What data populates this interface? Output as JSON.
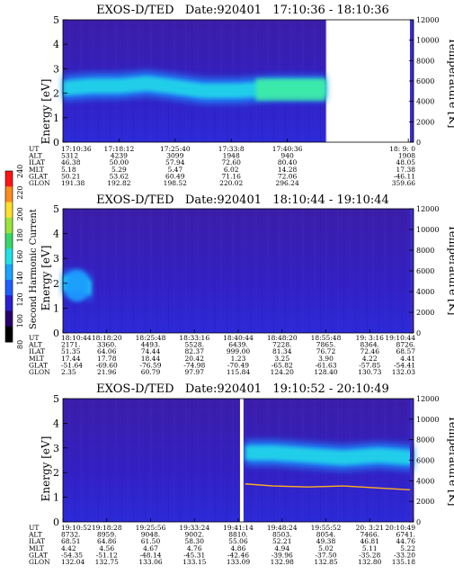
{
  "colorbar": {
    "label": "Second Harmonic Current",
    "ticks": [
      "80",
      "100",
      "120",
      "140",
      "160",
      "180",
      "200",
      "220",
      "240"
    ],
    "colors": [
      "#000000",
      "#2a006e",
      "#2c1fd0",
      "#1f5fff",
      "#1aa3ff",
      "#1ee2e6",
      "#36d86a",
      "#9ae63a",
      "#ffe02a",
      "#ff8c1e",
      "#ff1414"
    ]
  },
  "chart_data": [
    {
      "type": "heatmap",
      "title": "EXOS-D/TED   Date:920401   17:10:36 - 18:10:36",
      "ylabel": "Energy [eV]",
      "yticks": [
        "0",
        "1",
        "2",
        "3",
        "4",
        "5"
      ],
      "ylim": [
        0,
        5
      ],
      "y2label": "Temperature [K]",
      "y2ticks": [
        "0",
        "2000",
        "4000",
        "6000",
        "8000",
        "10000",
        "12000"
      ],
      "y2lim": [
        0,
        12000
      ],
      "data_extent_fraction": 0.75,
      "gap": null,
      "band": [
        [
          0,
          2.2
        ],
        [
          0.08,
          2.3
        ],
        [
          0.16,
          2.3
        ],
        [
          0.24,
          2.4
        ],
        [
          0.3,
          2.3
        ],
        [
          0.4,
          2.1
        ],
        [
          0.5,
          2.1
        ],
        [
          0.6,
          2.2
        ],
        [
          0.7,
          2.2
        ],
        [
          0.75,
          2.2
        ]
      ],
      "temperature_series": [],
      "row_labels": [
        "UT",
        "ALT",
        "ILAT",
        "MLT",
        "GLAT",
        "GLON"
      ],
      "columns": [
        [
          "17:10:36",
          "5312",
          "46.38",
          "5.18",
          "50.21",
          "191.38"
        ],
        [
          "17:18:12",
          "4239",
          "50.00",
          "5.29",
          "53.62",
          "192.82"
        ],
        [
          "17:25:40",
          "3099",
          "57.94",
          "5.47",
          "60.49",
          "198.52"
        ],
        [
          "17:33:8",
          "1948",
          "72.60",
          "6.02",
          "71.16",
          "220.02"
        ],
        [
          "17:40:36",
          "940",
          "80.40",
          "14.28",
          "72.06",
          "296.24"
        ],
        [
          "18: 9: 0",
          "1908",
          "48.05",
          "17.38",
          "-46.11",
          "359.66"
        ]
      ]
    },
    {
      "type": "heatmap",
      "title": "EXOS-D/TED   Date:920401   18:10:44 - 19:10:44",
      "ylabel": "Energy [eV]",
      "yticks": [
        "0",
        "1",
        "2",
        "3",
        "4",
        "5"
      ],
      "ylim": [
        0,
        5
      ],
      "y2label": "Temperature [K]",
      "y2ticks": [
        "0",
        "2000",
        "4000",
        "6000",
        "8000",
        "10000",
        "12000"
      ],
      "y2lim": [
        0,
        12000
      ],
      "data_extent_fraction": 1.0,
      "gap": null,
      "band": [
        [
          0,
          2.0
        ],
        [
          0.05,
          2.0
        ],
        [
          0.08,
          1.8
        ]
      ],
      "temperature_series": [],
      "row_labels": [
        "UT",
        "ALT",
        "ILAT",
        "MLT",
        "GLAT",
        "GLON"
      ],
      "columns": [
        [
          "18:10:44",
          "2171.",
          "51.35",
          "17.44",
          "-51.64",
          "2.35"
        ],
        [
          "18:18:20",
          "3360.",
          "64.06",
          "17.78",
          "-69.60",
          "21.96"
        ],
        [
          "18:25:48",
          "4493.",
          "74.44",
          "18.44",
          "-76.59",
          "60.79"
        ],
        [
          "18:33:16",
          "5528.",
          "82.37",
          "20.42",
          "-74.98",
          "97.97"
        ],
        [
          "18:40:44",
          "6439.",
          "999.00",
          "1.23",
          "-70.49",
          "115.84"
        ],
        [
          "18:48:20",
          "7228.",
          "81.34",
          "3.25",
          "-65.82",
          "124.20"
        ],
        [
          "18:55:48",
          "7865.",
          "76.72",
          "3.90",
          "-61.63",
          "128.40"
        ],
        [
          "19: 3:16",
          "8364.",
          "72.46",
          "4.22",
          "-57.85",
          "130.73"
        ],
        [
          "19:10:44",
          "8726.",
          "68.57",
          "4.41",
          "-54.41",
          "132.03"
        ]
      ]
    },
    {
      "type": "heatmap",
      "title": "EXOS-D/TED   Date:920401   19:10:52 - 20:10:49",
      "ylabel": "Energy [eV]",
      "yticks": [
        "0",
        "1",
        "2",
        "3",
        "4",
        "5"
      ],
      "ylim": [
        0,
        5
      ],
      "y2label": "Temperature [K]",
      "y2ticks": [
        "0",
        "2000",
        "4000",
        "6000",
        "8000",
        "10000",
        "12000"
      ],
      "y2lim": [
        0,
        12000
      ],
      "data_extent_fraction": 1.0,
      "gap": [
        0.505,
        0.515
      ],
      "band": [
        [
          0.52,
          2.8
        ],
        [
          0.6,
          2.8
        ],
        [
          0.7,
          2.7
        ],
        [
          0.8,
          2.6
        ],
        [
          0.9,
          2.7
        ],
        [
          1.0,
          2.6
        ]
      ],
      "temperature_series": [
        [
          0.52,
          3700
        ],
        [
          0.6,
          3500
        ],
        [
          0.7,
          3400
        ],
        [
          0.8,
          3500
        ],
        [
          0.9,
          3300
        ],
        [
          1.0,
          3100
        ]
      ],
      "row_labels": [
        "UT",
        "ALT",
        "ILAT",
        "MLT",
        "GLAT",
        "GLON"
      ],
      "columns": [
        [
          "19:10:52",
          "8732.",
          "68.51",
          "4.42",
          "-54.35",
          "132.04"
        ],
        [
          "19:18:28",
          "8959.",
          "64.86",
          "4.56",
          "-51.12",
          "132.75"
        ],
        [
          "19:25:56",
          "9048.",
          "61.50",
          "4.67",
          "-48.14",
          "133.06"
        ],
        [
          "19:33:24",
          "9002.",
          "58.30",
          "4.76",
          "-45.31",
          "133.15"
        ],
        [
          "19:41:14",
          "8810.",
          "55.06",
          "4.86",
          "-42.46",
          "133.09"
        ],
        [
          "19:48:24",
          "8503.",
          "52.21",
          "4.94",
          "-39.96",
          "132.98"
        ],
        [
          "19:55:52",
          "8054.",
          "49.38",
          "5.02",
          "-37.50",
          "132.85"
        ],
        [
          "20: 3:21",
          "7466.",
          "46.81",
          "5.11",
          "-35.28",
          "132.80"
        ],
        [
          "20:10:49",
          "6741.",
          "44.76",
          "5.22",
          "-33.20",
          "135.18"
        ]
      ]
    }
  ]
}
